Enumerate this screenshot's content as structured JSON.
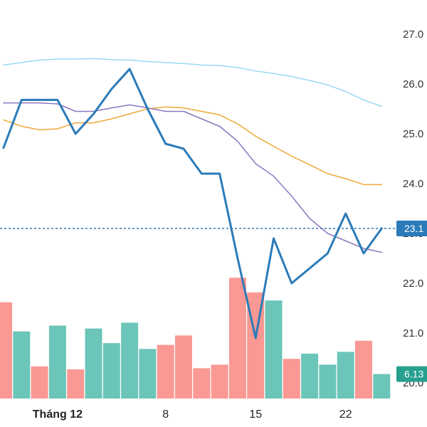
{
  "chart_data": {
    "type": "line",
    "x_tick_labels": [
      {
        "label": "Tháng 12",
        "index": 3,
        "bold": true
      },
      {
        "label": "8",
        "index": 9,
        "bold": false
      },
      {
        "label": "15",
        "index": 14,
        "bold": false
      },
      {
        "label": "22",
        "index": 19,
        "bold": false
      }
    ],
    "y_ticks": [
      "27.0",
      "26.0",
      "25.0",
      "24.0",
      "23.0",
      "22.0",
      "21.0",
      "20.0"
    ],
    "ylim": [
      20,
      27
    ],
    "series": [
      {
        "role": "price",
        "color": "#2b7bb9",
        "values": [
          24.72,
          25.68,
          25.68,
          25.68,
          25.0,
          25.4,
          25.9,
          26.3,
          25.5,
          24.8,
          24.7,
          24.2,
          24.2,
          22.5,
          20.9,
          22.9,
          22.0,
          22.3,
          22.6,
          23.4,
          22.6,
          23.1
        ]
      },
      {
        "role": "moving-average",
        "color": "#9ad8f2",
        "values": [
          26.38,
          26.43,
          26.48,
          26.5,
          26.5,
          26.51,
          26.49,
          26.48,
          26.45,
          26.43,
          26.41,
          26.38,
          26.37,
          26.33,
          26.26,
          26.21,
          26.15,
          26.07,
          25.98,
          25.85,
          25.68,
          25.55
        ]
      },
      {
        "role": "moving-average",
        "color": "#f0a838",
        "values": [
          25.28,
          25.15,
          25.08,
          25.1,
          25.22,
          25.22,
          25.3,
          25.4,
          25.5,
          25.54,
          25.52,
          25.45,
          25.38,
          25.2,
          24.95,
          24.75,
          24.55,
          24.38,
          24.2,
          24.1,
          23.98,
          23.98
        ]
      },
      {
        "role": "moving-average",
        "color": "#8a78c0",
        "values": [
          25.62,
          25.62,
          25.62,
          25.6,
          25.45,
          25.45,
          25.52,
          25.58,
          25.52,
          25.45,
          25.45,
          25.3,
          25.15,
          24.85,
          24.4,
          24.15,
          23.75,
          23.3,
          23.0,
          22.85,
          22.7,
          22.62
        ]
      }
    ],
    "current_price": {
      "value": 23.1,
      "label": "23.1"
    },
    "volume": {
      "values": [
        1.65,
        1.15,
        0.55,
        1.25,
        0.5,
        1.2,
        0.95,
        1.3,
        0.85,
        0.92,
        1.08,
        0.52,
        0.58,
        2.07,
        1.82,
        1.68,
        0.68,
        0.77,
        0.58,
        0.8,
        0.99,
        0.42
      ],
      "directions": [
        "down",
        "up",
        "down",
        "up",
        "down",
        "up",
        "up",
        "up",
        "up",
        "down",
        "down",
        "down",
        "down",
        "down",
        "down",
        "up",
        "down",
        "up",
        "up",
        "up",
        "down",
        "up"
      ],
      "up_color": "#6cc5b9",
      "down_color": "#fa9893",
      "last_label": "6.13"
    },
    "grid": false
  }
}
